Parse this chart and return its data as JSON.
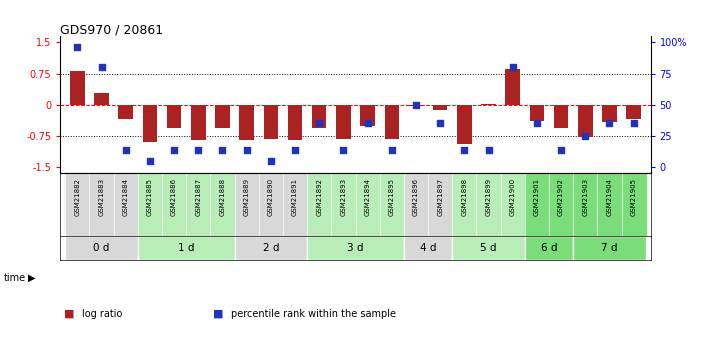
{
  "title": "GDS970 / 20861",
  "samples": [
    "GSM21882",
    "GSM21883",
    "GSM21884",
    "GSM21885",
    "GSM21886",
    "GSM21887",
    "GSM21888",
    "GSM21889",
    "GSM21890",
    "GSM21891",
    "GSM21892",
    "GSM21893",
    "GSM21894",
    "GSM21895",
    "GSM21896",
    "GSM21897",
    "GSM21898",
    "GSM21899",
    "GSM21900",
    "GSM21901",
    "GSM21902",
    "GSM21903",
    "GSM21904",
    "GSM21905"
  ],
  "log_ratio": [
    0.82,
    0.28,
    -0.35,
    -0.9,
    -0.55,
    -0.85,
    -0.55,
    -0.85,
    -0.82,
    -0.85,
    -0.55,
    -0.82,
    -0.5,
    -0.82,
    -0.02,
    -0.12,
    -0.95,
    0.03,
    0.85,
    -0.4,
    -0.55,
    -0.78,
    -0.42,
    -0.35
  ],
  "percentile": [
    96,
    80,
    14,
    5,
    14,
    14,
    14,
    14,
    5,
    14,
    35,
    14,
    35,
    14,
    50,
    35,
    14,
    14,
    80,
    35,
    14,
    25,
    35,
    35
  ],
  "time_groups": [
    {
      "label": "0 d",
      "samples": [
        "GSM21882",
        "GSM21883",
        "GSM21884"
      ],
      "color": "#d8d8d8"
    },
    {
      "label": "1 d",
      "samples": [
        "GSM21885",
        "GSM21886",
        "GSM21887",
        "GSM21888"
      ],
      "color": "#b8edb8"
    },
    {
      "label": "2 d",
      "samples": [
        "GSM21889",
        "GSM21890",
        "GSM21891"
      ],
      "color": "#d8d8d8"
    },
    {
      "label": "3 d",
      "samples": [
        "GSM21892",
        "GSM21893",
        "GSM21894",
        "GSM21895"
      ],
      "color": "#b8edb8"
    },
    {
      "label": "4 d",
      "samples": [
        "GSM21896",
        "GSM21897"
      ],
      "color": "#d8d8d8"
    },
    {
      "label": "5 d",
      "samples": [
        "GSM21898",
        "GSM21899",
        "GSM21900"
      ],
      "color": "#b8edb8"
    },
    {
      "label": "6 d",
      "samples": [
        "GSM21901",
        "GSM21902"
      ],
      "color": "#7add7a"
    },
    {
      "label": "7 d",
      "samples": [
        "GSM21903",
        "GSM21904",
        "GSM21905"
      ],
      "color": "#7add7a"
    }
  ],
  "ylim": [
    -1.65,
    1.65
  ],
  "y_ticks_left": [
    -1.5,
    -0.75,
    0,
    0.75,
    1.5
  ],
  "hlines_dotted": [
    -0.75,
    0.75
  ],
  "hline_dashed_red": 0,
  "bar_color": "#aa2222",
  "dot_color": "#2233bb",
  "legend_log_ratio": "log ratio",
  "legend_percentile": "percentile rank within the sample",
  "right_label_map": {
    "-1.5": "0",
    "-0.75": "25",
    "0.0": "50",
    "0.75": "75",
    "1.5": "100%"
  }
}
